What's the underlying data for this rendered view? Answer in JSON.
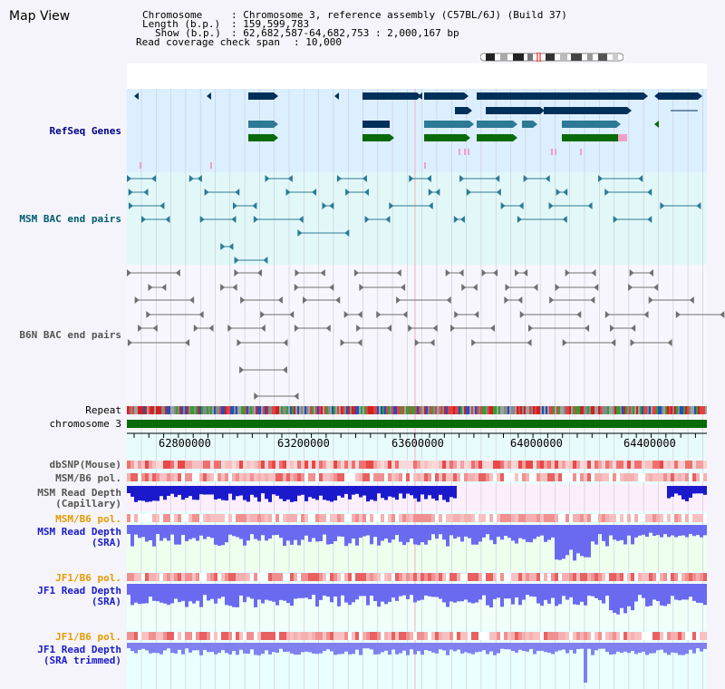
{
  "title": "Map View",
  "header": {
    "chromosome_label": "Chromosome",
    "chromosome_value": ": Chromosome 3, reference assembly (C57BL/6J) (Build 37)",
    "length_label": "Length (b.p.)",
    "length_value": ": 159,599,783",
    "show_label": "Show (b.p.)",
    "show_value": ": 62,682,587-64,682,753 : 2,000,167 bp",
    "coverage_label": "Read coverage check span",
    "coverage_value": ": 10,000"
  },
  "tracks": {
    "refseq": "RefSeq Genes",
    "msm_bac": "MSM BAC end pairs",
    "b6n_bac": "B6N BAC end pairs",
    "repeat": "Repeat",
    "chromosome": "chromosome 3",
    "dbsnp": "dbSNP(Mouse)",
    "msm_b6_pol": "MSM/B6 pol.",
    "msm_depth_cap": "MSM Read Depth\n(Capillary)",
    "msm_b6_pol2": "MSM/B6 pol.",
    "msm_depth_sra": "MSM Read Depth\n(SRA)",
    "jf1_b6_pol": "JF1/B6 pol.",
    "jf1_depth_sra": "JF1 Read Depth\n(SRA)",
    "jf1_b6_pol2": "JF1/B6 pol.",
    "jf1_depth_trim": "JF1 Read Depth\n(SRA trimmed)"
  },
  "axis": {
    "ticks": [
      "62800000",
      "63200000",
      "63600000",
      "64000000",
      "64400000"
    ]
  },
  "colors": {
    "navy": "#00305a",
    "teal": "#2c7a96",
    "green": "#086b08",
    "pink": "#f0a0c8",
    "gray": "#707070",
    "track_blue": "#1a1acc",
    "orange": "#e89a00"
  }
}
